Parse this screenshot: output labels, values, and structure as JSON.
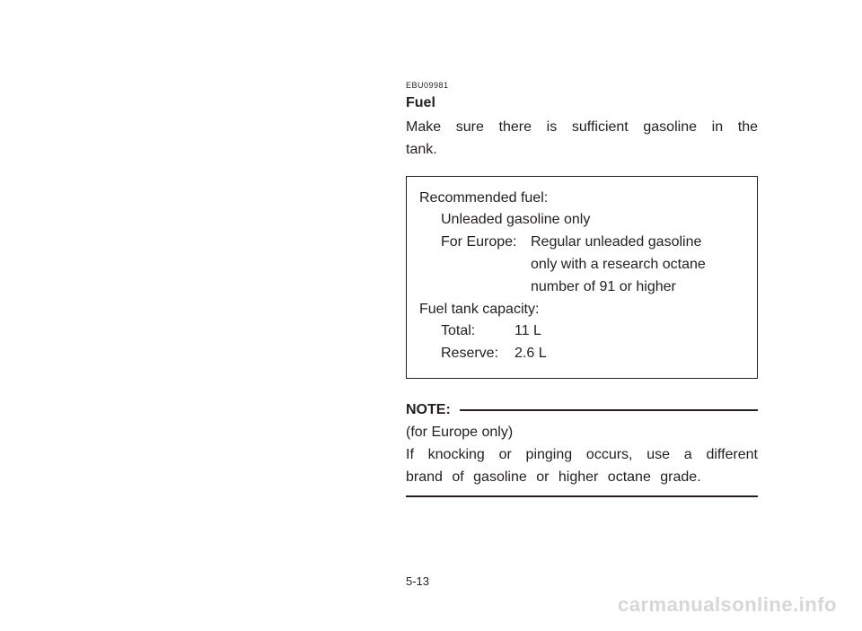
{
  "document": {
    "code": "EBU09981",
    "section_title": "Fuel",
    "intro": "Make sure there is sufficient gasoline in the tank.",
    "spec": {
      "rec_fuel_label": "Recommended fuel:",
      "rec_fuel_val": "Unleaded gasoline only",
      "europe_label": "For Europe:",
      "europe_val_l1": "Regular unleaded gasoline",
      "europe_val_l2": "only with a research octane",
      "europe_val_l3": "number of 91 or higher",
      "capacity_label": "Fuel tank capacity:",
      "total_label": "Total:",
      "total_val": "11 L",
      "reserve_label": "Reserve:",
      "reserve_val": "2.6 L"
    },
    "note": {
      "label": "NOTE:",
      "line1": "(for Europe only)",
      "line2": "If knocking or pinging occurs, use a different brand of gasoline or higher octane grade."
    },
    "page_number": "5-13",
    "watermark": "carmanualsonline.info"
  }
}
